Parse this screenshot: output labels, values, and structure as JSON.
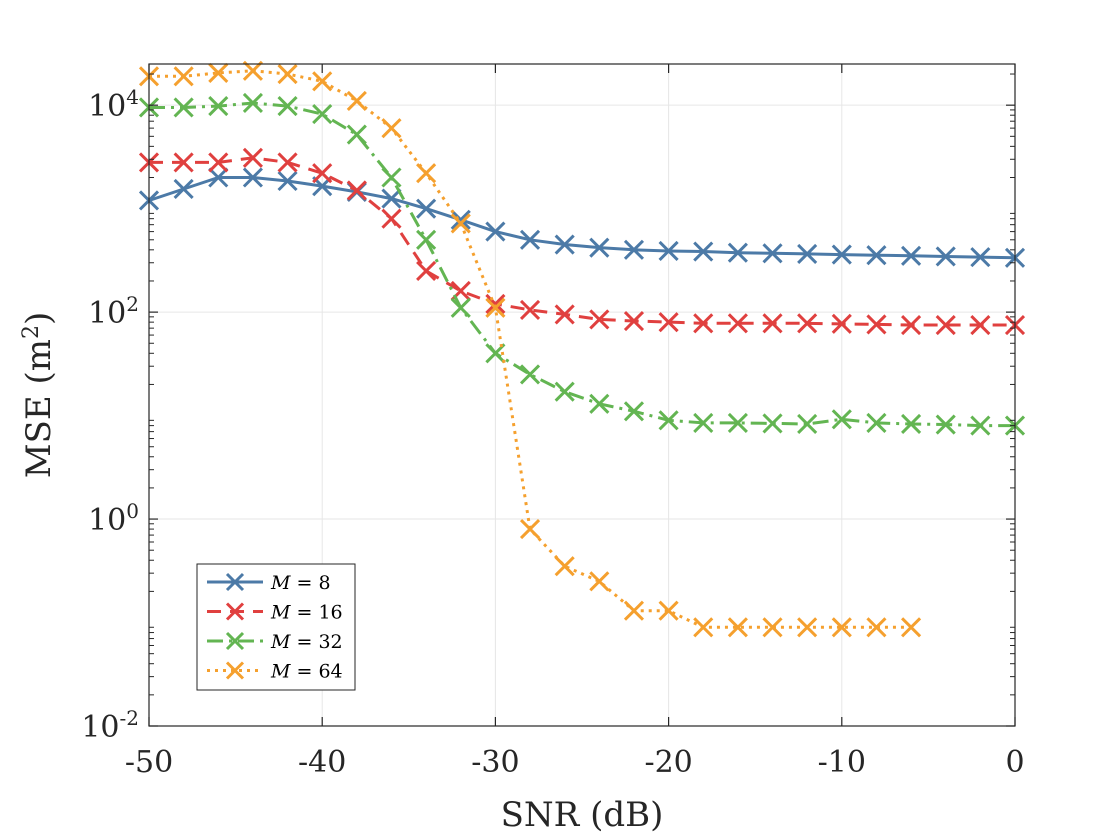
{
  "chart_data": {
    "type": "line",
    "title": "",
    "xlabel": "SNR (dB)",
    "ylabel_text": "MSE (m",
    "ylabel_sup": "2",
    "ylabel_close": ")",
    "yscale": "log",
    "xlim": [
      -50,
      0
    ],
    "ylim": [
      0.01,
      25000
    ],
    "grid": true,
    "legend_position": "lower-left",
    "x_ticks": [
      {
        "value": -50,
        "label": "-50"
      },
      {
        "value": -40,
        "label": "-40"
      },
      {
        "value": -30,
        "label": "-30"
      },
      {
        "value": -20,
        "label": "-20"
      },
      {
        "value": -10,
        "label": "-10"
      },
      {
        "value": 0,
        "label": "0"
      }
    ],
    "y_ticks": [
      {
        "value": 0.01,
        "base": "10",
        "exp": "-2"
      },
      {
        "value": 1,
        "base": "10",
        "exp": "0"
      },
      {
        "value": 100,
        "base": "10",
        "exp": "2"
      },
      {
        "value": 10000,
        "base": "10",
        "exp": "4"
      }
    ],
    "series": [
      {
        "name": "M = 8",
        "legend_var": "M",
        "legend_eq": " = 8",
        "color": "#4c7aa7",
        "dash": "solid",
        "width": 3,
        "x": [
          -50,
          -48,
          -46,
          -44,
          -42,
          -40,
          -38,
          -36,
          -34,
          -32,
          -30,
          -28,
          -26,
          -24,
          -22,
          -20,
          -18,
          -16,
          -14,
          -12,
          -10,
          -8,
          -6,
          -4,
          -2,
          0
        ],
        "y": [
          1200,
          1550,
          2000,
          2000,
          1850,
          1650,
          1450,
          1250,
          1000,
          780,
          600,
          500,
          450,
          420,
          400,
          390,
          385,
          375,
          370,
          365,
          360,
          355,
          350,
          345,
          340,
          335
        ]
      },
      {
        "name": "M = 16",
        "legend_var": "M",
        "legend_eq": " = 16",
        "color": "#e0403f",
        "dash": "14 9",
        "width": 3,
        "x": [
          -50,
          -48,
          -46,
          -44,
          -42,
          -40,
          -38,
          -36,
          -34,
          -32,
          -30,
          -28,
          -26,
          -24,
          -22,
          -20,
          -18,
          -16,
          -14,
          -12,
          -10,
          -8,
          -6,
          -4,
          -2,
          0
        ],
        "y": [
          2800,
          2800,
          2800,
          3100,
          2800,
          2200,
          1500,
          800,
          250,
          160,
          120,
          105,
          95,
          85,
          82,
          80,
          78,
          78,
          78,
          78,
          77,
          76,
          75,
          75,
          75,
          75
        ]
      },
      {
        "name": "M = 32",
        "legend_var": "M",
        "legend_eq": " = 32",
        "color": "#63b552",
        "dash": "16 6 3 6",
        "width": 3,
        "x": [
          -50,
          -48,
          -46,
          -44,
          -42,
          -40,
          -38,
          -36,
          -34,
          -32,
          -30,
          -28,
          -26,
          -24,
          -22,
          -20,
          -18,
          -16,
          -14,
          -12,
          -10,
          -8,
          -6,
          -4,
          -2,
          0
        ],
        "y": [
          9500,
          9500,
          9800,
          10500,
          9800,
          8200,
          5200,
          2000,
          500,
          110,
          40,
          25,
          17,
          13,
          11,
          9,
          8.5,
          8.5,
          8.4,
          8.3,
          9.2,
          8.5,
          8.3,
          8.2,
          8,
          8
        ]
      },
      {
        "name": "M = 64",
        "legend_var": "M",
        "legend_eq": " = 64",
        "color": "#f5a02e",
        "dash": "3 5",
        "width": 3,
        "x": [
          -50,
          -48,
          -46,
          -44,
          -42,
          -40,
          -38,
          -36,
          -34,
          -32,
          -30,
          -28,
          -26,
          -24,
          -22,
          -20,
          -18,
          -16,
          -14,
          -12,
          -10,
          -8,
          -6
        ],
        "y": [
          19000,
          19000,
          20500,
          21500,
          20000,
          17000,
          11000,
          6000,
          2200,
          720,
          110,
          0.8,
          0.35,
          0.25,
          0.13,
          0.13,
          0.09,
          0.09,
          0.09,
          0.09,
          0.09,
          0.09,
          0.09
        ]
      }
    ]
  }
}
